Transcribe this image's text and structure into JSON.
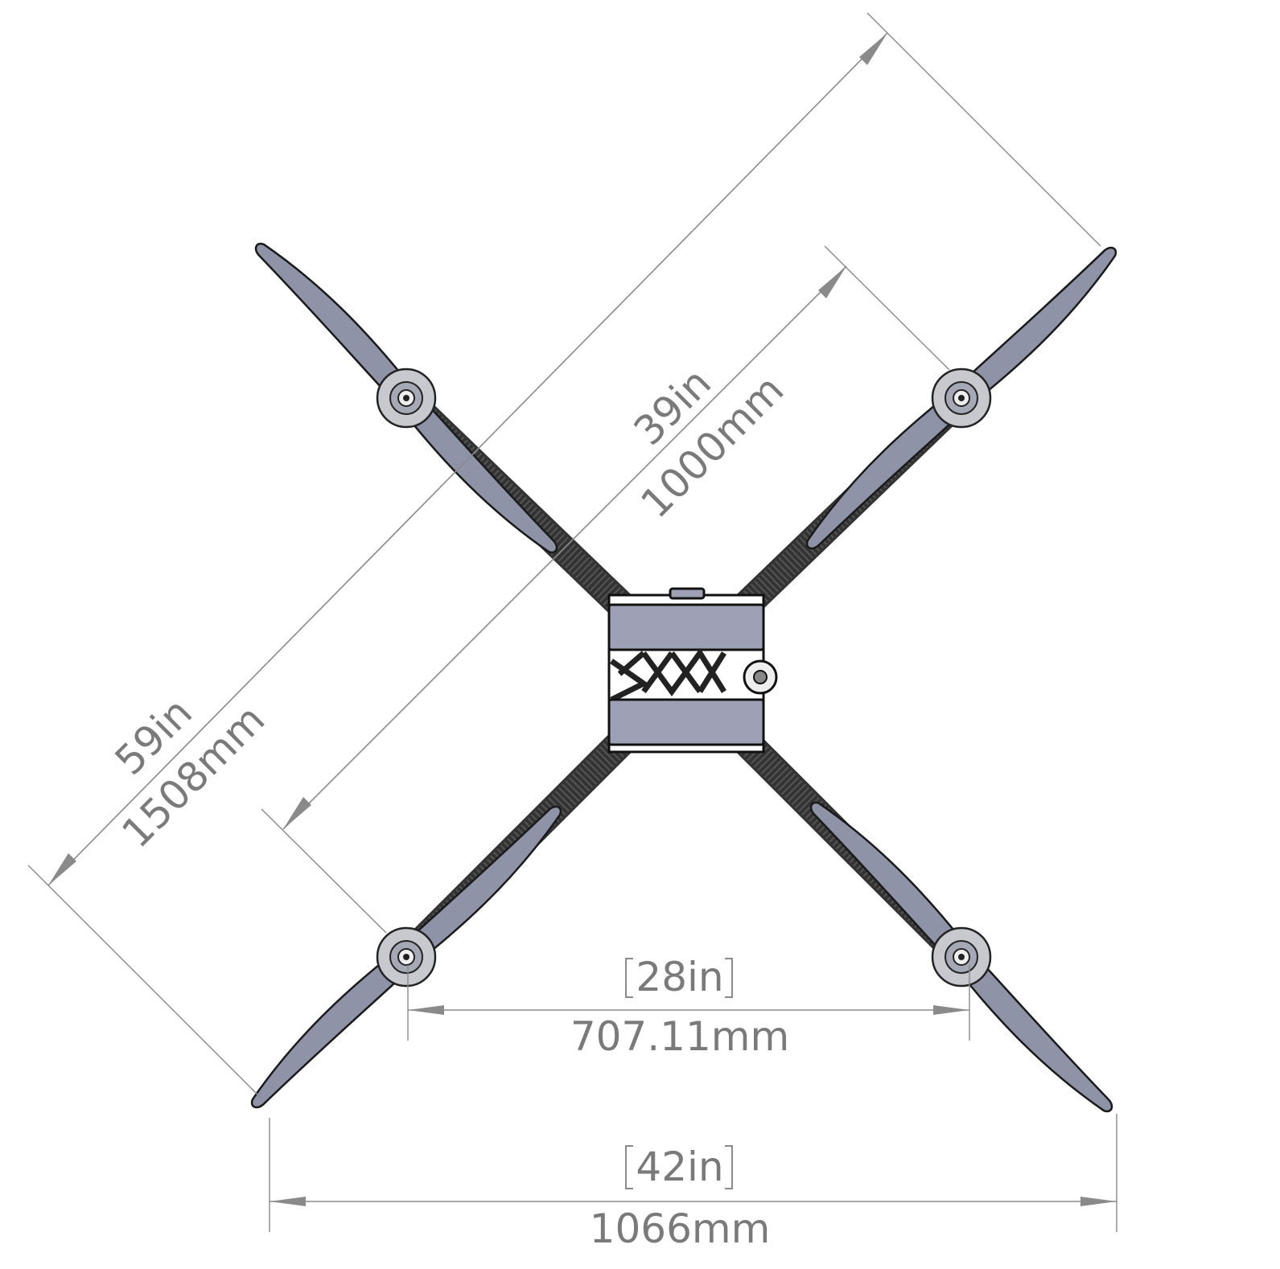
{
  "dimensions": {
    "diagonal_outer": {
      "imperial": "59in",
      "metric": "1508mm"
    },
    "diagonal_inner": {
      "imperial": "39in",
      "metric": "1000mm"
    },
    "motor_spacing": {
      "imperial": "28in",
      "metric": "707.11mm"
    },
    "overall_width": {
      "imperial": "42in",
      "metric": "1066mm"
    }
  },
  "colors": {
    "dimension": "#8a8a8a",
    "propeller": "#8e93a8",
    "arm": "#333333",
    "body": "#9ea1b5"
  }
}
